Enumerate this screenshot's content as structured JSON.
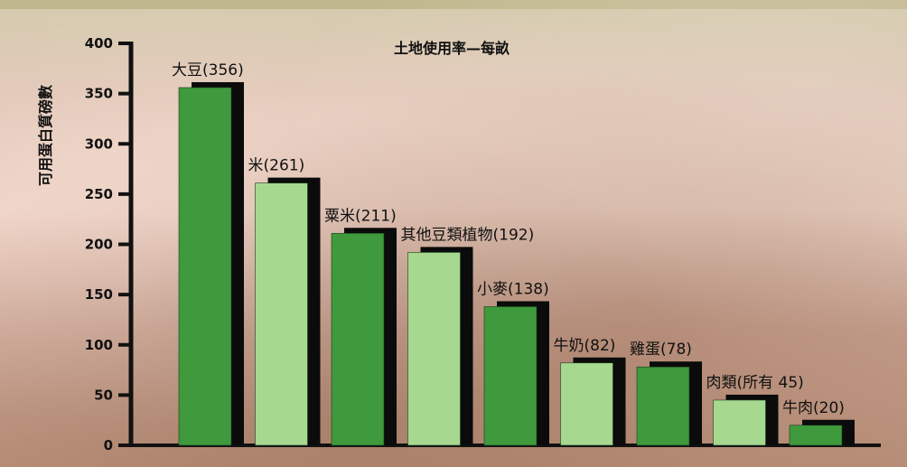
{
  "chart_data": {
    "type": "bar",
    "title": "土地使用率—每畝",
    "ylabel": "可用蛋白質磅數",
    "xlabel": "",
    "ylim": [
      0,
      400
    ],
    "yticks": [
      0,
      50,
      100,
      150,
      200,
      250,
      300,
      350,
      400
    ],
    "grid": false,
    "categories": [
      "大豆",
      "米",
      "粟米",
      "其他豆類植物",
      "小麥",
      "牛奶",
      "雞蛋",
      "肉類(所有",
      "牛肉"
    ],
    "values": [
      356,
      261,
      211,
      192,
      138,
      82,
      78,
      45,
      20
    ],
    "data_labels": [
      "大豆(356)",
      "米(261)",
      "粟米(211)",
      "其他豆類植物(192)",
      "小麥(138)",
      "牛奶(82)",
      "雞蛋(78)",
      "肉類(所有 45)",
      "牛肉(20)"
    ],
    "colors": {
      "dark_bar": "#3e9a3c",
      "light_bar": "#a6d890",
      "shadow": "#0b0b0b"
    }
  }
}
